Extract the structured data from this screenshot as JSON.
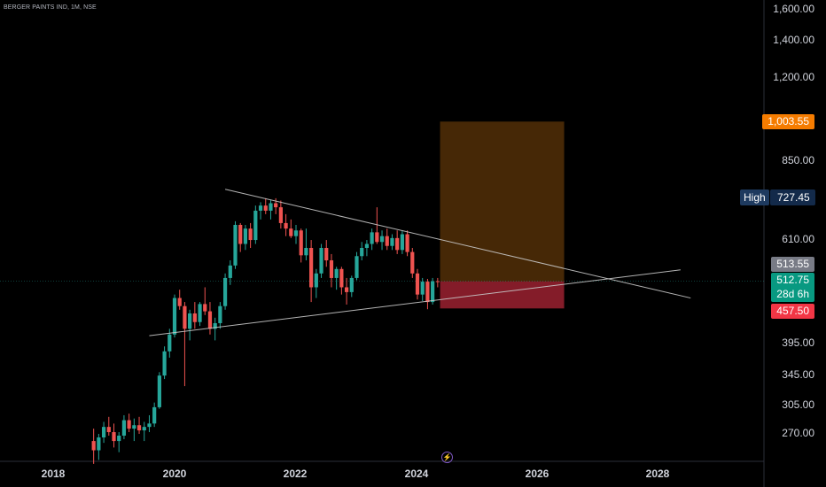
{
  "header": {
    "symbol_line": "BERGER PAINTS IND, 1M, NSE"
  },
  "price_axis": {
    "labels": [
      "1,600.00",
      "1,400.00",
      "1,200.00",
      "850.00",
      "610.00",
      "395.00",
      "345.00",
      "305.00",
      "270.00"
    ]
  },
  "tags": {
    "target": "1,003.55",
    "high_label": "High",
    "high_value": "727.45",
    "prev_close": "513.55",
    "last_price": "512.75",
    "countdown": "28d 6h",
    "stop": "457.50"
  },
  "time_axis": {
    "labels": [
      "2018",
      "2020",
      "2022",
      "2024",
      "2026",
      "2028"
    ]
  },
  "colors": {
    "up": "#26a69a",
    "down": "#ef5350",
    "target_zone": "#4a2a06",
    "stop_zone": "#8b1e2b",
    "target_tag": "#f57c00",
    "last_tag": "#089981",
    "stop_tag": "#f23645"
  },
  "chart_data": {
    "type": "candlestick",
    "title": "BERGER PAINTS IND, 1M, NSE",
    "y_scale": "log",
    "ylim": [
      240,
      1700
    ],
    "xlim": [
      "2017-08",
      "2029-02"
    ],
    "candles": [
      [
        "2018-09",
        262,
        276,
        238,
        252
      ],
      [
        "2018-10",
        252,
        270,
        242,
        266
      ],
      [
        "2018-11",
        266,
        284,
        260,
        278
      ],
      [
        "2018-12",
        278,
        290,
        268,
        272
      ],
      [
        "2019-01",
        272,
        282,
        255,
        262
      ],
      [
        "2019-02",
        262,
        272,
        250,
        268
      ],
      [
        "2019-03",
        268,
        292,
        264,
        286
      ],
      [
        "2019-04",
        286,
        294,
        272,
        276
      ],
      [
        "2019-05",
        276,
        288,
        262,
        280
      ],
      [
        "2019-06",
        280,
        290,
        270,
        274
      ],
      [
        "2019-07",
        274,
        284,
        262,
        278
      ],
      [
        "2019-08",
        278,
        292,
        272,
        282
      ],
      [
        "2019-09",
        282,
        308,
        278,
        302
      ],
      [
        "2019-10",
        302,
        350,
        300,
        345
      ],
      [
        "2019-11",
        345,
        390,
        340,
        382
      ],
      [
        "2019-12",
        382,
        420,
        372,
        410
      ],
      [
        "2020-01",
        410,
        485,
        405,
        478
      ],
      [
        "2020-02",
        478,
        495,
        455,
        462
      ],
      [
        "2020-03",
        462,
        470,
        330,
        420
      ],
      [
        "2020-04",
        420,
        455,
        400,
        448
      ],
      [
        "2020-05",
        448,
        470,
        420,
        432
      ],
      [
        "2020-06",
        432,
        470,
        425,
        466
      ],
      [
        "2020-07",
        466,
        500,
        445,
        452
      ],
      [
        "2020-08",
        452,
        470,
        410,
        420
      ],
      [
        "2020-09",
        420,
        440,
        400,
        430
      ],
      [
        "2020-10",
        430,
        470,
        420,
        462
      ],
      [
        "2020-11",
        462,
        530,
        455,
        520
      ],
      [
        "2020-12",
        520,
        560,
        505,
        548
      ],
      [
        "2021-01",
        548,
        660,
        540,
        650
      ],
      [
        "2021-02",
        650,
        655,
        580,
        600
      ],
      [
        "2021-03",
        600,
        650,
        585,
        640
      ],
      [
        "2021-04",
        640,
        655,
        590,
        610
      ],
      [
        "2021-05",
        610,
        705,
        600,
        690
      ],
      [
        "2021-06",
        690,
        715,
        665,
        705
      ],
      [
        "2021-07",
        705,
        727,
        680,
        690
      ],
      [
        "2021-08",
        690,
        722,
        665,
        712
      ],
      [
        "2021-09",
        712,
        727,
        680,
        700
      ],
      [
        "2021-10",
        700,
        720,
        640,
        655
      ],
      [
        "2021-11",
        655,
        680,
        620,
        640
      ],
      [
        "2021-12",
        640,
        665,
        615,
        620
      ],
      [
        "2022-01",
        620,
        650,
        600,
        635
      ],
      [
        "2022-02",
        635,
        640,
        555,
        572
      ],
      [
        "2022-03",
        572,
        640,
        560,
        590
      ],
      [
        "2022-04",
        590,
        610,
        470,
        500
      ],
      [
        "2022-05",
        500,
        540,
        478,
        530
      ],
      [
        "2022-06",
        530,
        600,
        520,
        590
      ],
      [
        "2022-07",
        590,
        610,
        545,
        560
      ],
      [
        "2022-08",
        560,
        575,
        500,
        520
      ],
      [
        "2022-09",
        520,
        545,
        495,
        540
      ],
      [
        "2022-10",
        540,
        545,
        485,
        500
      ],
      [
        "2022-11",
        500,
        520,
        465,
        490
      ],
      [
        "2022-12",
        490,
        525,
        480,
        520
      ],
      [
        "2023-01",
        520,
        580,
        515,
        570
      ],
      [
        "2023-02",
        570,
        605,
        560,
        590
      ],
      [
        "2023-03",
        590,
        610,
        570,
        600
      ],
      [
        "2023-04",
        600,
        640,
        585,
        630
      ],
      [
        "2023-05",
        630,
        700,
        600,
        605
      ],
      [
        "2023-06",
        605,
        635,
        585,
        620
      ],
      [
        "2023-07",
        620,
        640,
        585,
        595
      ],
      [
        "2023-08",
        595,
        625,
        585,
        615
      ],
      [
        "2023-09",
        615,
        635,
        575,
        585
      ],
      [
        "2023-10",
        585,
        635,
        575,
        625
      ],
      [
        "2023-11",
        625,
        635,
        570,
        580
      ],
      [
        "2023-12",
        580,
        590,
        520,
        530
      ],
      [
        "2024-01",
        530,
        540,
        475,
        485
      ],
      [
        "2024-02",
        485,
        520,
        472,
        512
      ],
      [
        "2024-03",
        512,
        518,
        456,
        470
      ],
      [
        "2024-04",
        470,
        520,
        465,
        513
      ],
      [
        "2024-05",
        513,
        520,
        500,
        512.75
      ]
    ],
    "trendlines": [
      {
        "from": [
          "2020-11",
          755
        ],
        "to": [
          "2028-07",
          478
        ]
      },
      {
        "from": [
          "2019-08",
          408
        ],
        "to": [
          "2028-05",
          538
        ]
      }
    ],
    "position": {
      "entry": 512.75,
      "target": 1003.55,
      "stop": 457.5,
      "from": "2024-06",
      "to": "2026-06"
    }
  }
}
